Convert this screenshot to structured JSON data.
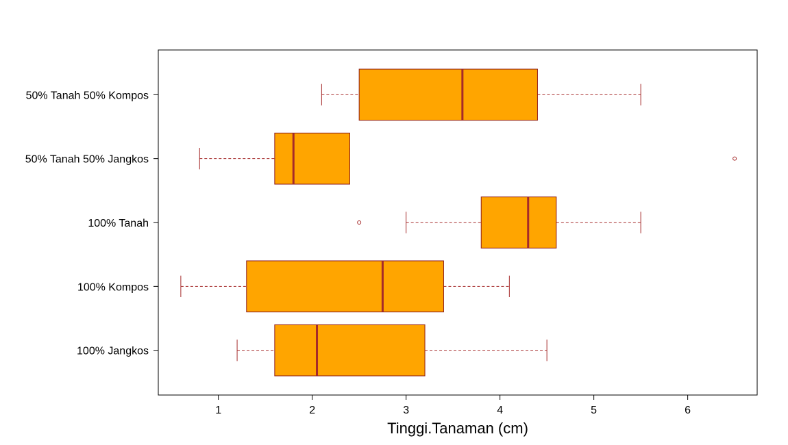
{
  "chart_data": {
    "type": "boxplot",
    "orientation": "horizontal",
    "title": "",
    "xlabel": "Tinggi.Tanaman (cm)",
    "ylabel": "",
    "xlim": [
      0.36,
      6.74
    ],
    "xticks": [
      1,
      2,
      3,
      4,
      5,
      6
    ],
    "grid": false,
    "categories": [
      "100% Jangkos",
      "100% Kompos",
      "100% Tanah",
      "50% Tanah 50% Jangkos",
      "50% Tanah 50% Kompos"
    ],
    "boxes": [
      {
        "category": "100% Jangkos",
        "whisker_low": 1.2,
        "q1": 1.6,
        "median": 2.05,
        "q3": 3.2,
        "whisker_high": 4.5,
        "outliers": []
      },
      {
        "category": "100% Kompos",
        "whisker_low": 0.6,
        "q1": 1.3,
        "median": 2.75,
        "q3": 3.4,
        "whisker_high": 4.1,
        "outliers": []
      },
      {
        "category": "100% Tanah",
        "whisker_low": 3.0,
        "q1": 3.8,
        "median": 4.3,
        "q3": 4.6,
        "whisker_high": 5.5,
        "outliers": [
          2.5
        ]
      },
      {
        "category": "50% Tanah 50% Jangkos",
        "whisker_low": 0.8,
        "q1": 1.6,
        "median": 1.8,
        "q3": 2.4,
        "whisker_high": 2.4,
        "outliers": [
          6.5
        ]
      },
      {
        "category": "50% Tanah 50% Kompos",
        "whisker_low": 2.1,
        "q1": 2.5,
        "median": 3.6,
        "q3": 4.4,
        "whisker_high": 5.5,
        "outliers": []
      }
    ],
    "colors": {
      "box_fill": "#FFA500",
      "box_border": "#8B1A1A",
      "median": "#A52A2A",
      "whisker": "#A52A2A",
      "outlier": "#A52A2A",
      "frame": "#000000"
    }
  }
}
